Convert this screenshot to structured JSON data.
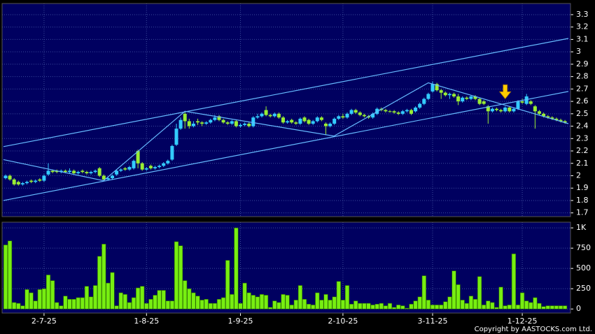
{
  "chart_data": [
    {
      "type": "candlestick",
      "up_color": "#33ccff",
      "down_color": "#99ee33",
      "grid": true,
      "grid_color": "#3a4a9a",
      "ylim": [
        1.67,
        3.39
      ],
      "yticks": [
        1.7,
        1.8,
        1.9,
        2,
        2.1,
        2.2,
        2.3,
        2.4,
        2.5,
        2.6,
        2.7,
        2.8,
        2.9,
        3,
        3.1,
        3.2,
        3.3
      ],
      "open": [
        1.98,
        2.0,
        1.97,
        1.95,
        1.93,
        1.94,
        1.96,
        1.95,
        1.97,
        1.96,
        2.01,
        2.04,
        2.04,
        2.03,
        2.04,
        2.03,
        2.04,
        2.02,
        2.04,
        2.03,
        2.02,
        2.03,
        2.06,
        2.0,
        1.97,
        1.98,
        2.01,
        2.04,
        2.06,
        2.05,
        2.06,
        2.2,
        2.1,
        2.05,
        2.08,
        2.06,
        2.07,
        2.08,
        2.1,
        2.13,
        2.25,
        2.38,
        2.5,
        2.44,
        2.4,
        2.44,
        2.43,
        2.42,
        2.43,
        2.45,
        2.48,
        2.45,
        2.43,
        2.42,
        2.44,
        2.4,
        2.41,
        2.42,
        2.4,
        2.47,
        2.48,
        2.53,
        2.49,
        2.48,
        2.5,
        2.47,
        2.43,
        2.45,
        2.43,
        2.42,
        2.47,
        2.45,
        2.42,
        2.44,
        2.47,
        2.42,
        2.4,
        2.42,
        2.46,
        2.48,
        2.47,
        2.5,
        2.53,
        2.51,
        2.49,
        2.48,
        2.47,
        2.5,
        2.54,
        2.53,
        2.52,
        2.52,
        2.51,
        2.5,
        2.52,
        2.53,
        2.52,
        2.55,
        2.58,
        2.62,
        2.68,
        2.74,
        2.69,
        2.67,
        2.65,
        2.66,
        2.64,
        2.6,
        2.63,
        2.62,
        2.64,
        2.62,
        2.6,
        2.56,
        2.52,
        2.54,
        2.53,
        2.52,
        2.55,
        2.52,
        2.54,
        2.6,
        2.58,
        2.6,
        2.56,
        2.52,
        2.5,
        2.48,
        2.47,
        2.46,
        2.45,
        2.44
      ],
      "high": [
        2.01,
        2.01,
        1.98,
        1.96,
        1.95,
        1.96,
        1.97,
        1.97,
        1.98,
        2.01,
        2.1,
        2.05,
        2.05,
        2.05,
        2.05,
        2.06,
        2.05,
        2.04,
        2.05,
        2.04,
        2.04,
        2.05,
        2.07,
        2.01,
        1.99,
        2.01,
        2.05,
        2.06,
        2.07,
        2.08,
        2.13,
        2.21,
        2.11,
        2.07,
        2.09,
        2.08,
        2.09,
        2.11,
        2.13,
        2.25,
        2.42,
        2.47,
        2.52,
        2.46,
        2.44,
        2.46,
        2.44,
        2.44,
        2.46,
        2.49,
        2.49,
        2.46,
        2.44,
        2.45,
        2.45,
        2.42,
        2.43,
        2.43,
        2.48,
        2.5,
        2.51,
        2.56,
        2.5,
        2.51,
        2.51,
        2.48,
        2.45,
        2.46,
        2.44,
        2.47,
        2.48,
        2.46,
        2.45,
        2.48,
        2.48,
        2.43,
        2.43,
        2.47,
        2.49,
        2.5,
        2.51,
        2.54,
        2.54,
        2.52,
        2.5,
        2.49,
        2.51,
        2.55,
        2.55,
        2.54,
        2.53,
        2.53,
        2.52,
        2.53,
        2.54,
        2.54,
        2.56,
        2.59,
        2.63,
        2.67,
        2.76,
        2.75,
        2.7,
        2.68,
        2.67,
        2.67,
        2.66,
        2.64,
        2.64,
        2.65,
        2.65,
        2.63,
        2.61,
        2.57,
        2.55,
        2.55,
        2.54,
        2.56,
        2.56,
        2.55,
        2.61,
        2.62,
        2.66,
        2.61,
        2.57,
        2.53,
        2.51,
        2.49,
        2.48,
        2.47,
        2.46,
        2.45
      ],
      "low": [
        1.97,
        1.96,
        1.92,
        1.92,
        1.92,
        1.93,
        1.94,
        1.94,
        1.95,
        1.95,
        2.0,
        2.02,
        2.02,
        2.02,
        2.02,
        2.02,
        2.01,
        2.01,
        2.02,
        2.01,
        2.01,
        2.02,
        1.99,
        1.96,
        1.96,
        1.97,
        2.0,
        2.03,
        2.04,
        2.04,
        2.05,
        2.06,
        2.04,
        2.04,
        2.05,
        2.05,
        2.06,
        2.07,
        2.09,
        2.12,
        2.24,
        2.37,
        2.38,
        2.38,
        2.39,
        2.41,
        2.4,
        2.41,
        2.42,
        2.44,
        2.44,
        2.42,
        2.41,
        2.41,
        2.39,
        2.39,
        2.4,
        2.39,
        2.39,
        2.46,
        2.47,
        2.48,
        2.47,
        2.47,
        2.46,
        2.42,
        2.42,
        2.42,
        2.41,
        2.41,
        2.43,
        2.41,
        2.41,
        2.43,
        2.44,
        2.33,
        2.39,
        2.41,
        2.45,
        2.46,
        2.46,
        2.49,
        2.5,
        2.48,
        2.47,
        2.46,
        2.46,
        2.49,
        2.52,
        2.51,
        2.51,
        2.5,
        2.49,
        2.49,
        2.51,
        2.49,
        2.51,
        2.54,
        2.57,
        2.61,
        2.67,
        2.68,
        2.62,
        2.64,
        2.62,
        2.63,
        2.57,
        2.59,
        2.61,
        2.61,
        2.61,
        2.57,
        2.57,
        2.42,
        2.51,
        2.52,
        2.51,
        2.51,
        2.51,
        2.51,
        2.53,
        2.58,
        2.57,
        2.57,
        2.38,
        2.49,
        2.47,
        2.46,
        2.45,
        2.44,
        2.43,
        2.42
      ],
      "close": [
        2.0,
        1.97,
        1.93,
        1.93,
        1.94,
        1.95,
        1.95,
        1.96,
        1.96,
        2.0,
        2.04,
        2.03,
        2.03,
        2.04,
        2.03,
        2.04,
        2.02,
        2.03,
        2.03,
        2.02,
        2.03,
        2.04,
        2.0,
        1.97,
        1.98,
        2.0,
        2.04,
        2.05,
        2.05,
        2.07,
        2.12,
        2.1,
        2.05,
        2.06,
        2.06,
        2.07,
        2.08,
        2.1,
        2.12,
        2.24,
        2.38,
        2.45,
        2.44,
        2.4,
        2.42,
        2.43,
        2.42,
        2.43,
        2.45,
        2.47,
        2.45,
        2.43,
        2.42,
        2.44,
        2.4,
        2.41,
        2.42,
        2.4,
        2.47,
        2.48,
        2.5,
        2.49,
        2.48,
        2.5,
        2.47,
        2.43,
        2.44,
        2.43,
        2.42,
        2.46,
        2.44,
        2.42,
        2.44,
        2.47,
        2.45,
        2.4,
        2.42,
        2.46,
        2.48,
        2.47,
        2.5,
        2.53,
        2.51,
        2.49,
        2.48,
        2.47,
        2.5,
        2.54,
        2.53,
        2.52,
        2.52,
        2.51,
        2.5,
        2.52,
        2.53,
        2.5,
        2.55,
        2.58,
        2.62,
        2.66,
        2.74,
        2.69,
        2.67,
        2.65,
        2.66,
        2.64,
        2.6,
        2.63,
        2.62,
        2.64,
        2.62,
        2.58,
        2.58,
        2.52,
        2.54,
        2.53,
        2.52,
        2.55,
        2.52,
        2.54,
        2.6,
        2.59,
        2.64,
        2.58,
        2.52,
        2.5,
        2.48,
        2.47,
        2.46,
        2.45,
        2.44,
        2.43
      ],
      "lines": [
        {
          "color": "#66bbff",
          "x": [
            -0.5,
            131.8
          ],
          "y": [
            2.235,
            3.108
          ]
        },
        {
          "color": "#66bbff",
          "x": [
            -0.5,
            131.8
          ],
          "y": [
            1.8,
            2.68
          ]
        },
        {
          "color": "#66bbff",
          "x": [
            -0.5,
            22.95,
            42,
            76.9,
            99,
            131.8
          ],
          "y": [
            2.13,
            1.96,
            2.52,
            2.32,
            2.75,
            2.42
          ]
        }
      ],
      "arrow": {
        "color": "#ffcc00",
        "x": 117,
        "y": 2.61
      }
    },
    {
      "type": "bar",
      "color": "#77ee11",
      "grid": true,
      "grid_color": "#3a4a9a",
      "ylim": [
        -50,
        1070
      ],
      "yticks": [
        0,
        250,
        500,
        750,
        {
          "value": 1000,
          "label": "1K"
        }
      ],
      "categories": [
        null,
        null,
        null,
        null,
        null,
        null,
        null,
        null,
        null,
        "2-7-25",
        null,
        null,
        null,
        null,
        null,
        null,
        null,
        null,
        null,
        null,
        null,
        null,
        null,
        null,
        null,
        null,
        null,
        null,
        null,
        null,
        null,
        null,
        null,
        "1-8-25",
        null,
        null,
        null,
        null,
        null,
        null,
        null,
        null,
        null,
        null,
        null,
        null,
        null,
        null,
        null,
        null,
        null,
        null,
        null,
        null,
        null,
        "1-9-25",
        null,
        null,
        null,
        null,
        null,
        null,
        null,
        null,
        null,
        null,
        null,
        null,
        null,
        null,
        null,
        null,
        null,
        null,
        null,
        null,
        null,
        null,
        null,
        "2-10-25",
        null,
        null,
        null,
        null,
        null,
        null,
        null,
        null,
        null,
        null,
        null,
        null,
        null,
        null,
        null,
        null,
        null,
        null,
        null,
        null,
        "3-11-25",
        null,
        null,
        null,
        null,
        null,
        null,
        null,
        null,
        null,
        null,
        null,
        null,
        null,
        null,
        null,
        null,
        null,
        null,
        null,
        null,
        "1-12-25",
        null,
        null,
        null,
        null,
        null,
        null,
        null,
        null,
        null,
        null
      ],
      "values": [
        790,
        840,
        80,
        70,
        40,
        240,
        200,
        100,
        240,
        250,
        420,
        350,
        80,
        40,
        160,
        120,
        120,
        140,
        140,
        280,
        150,
        290,
        650,
        800,
        320,
        450,
        40,
        200,
        180,
        80,
        140,
        260,
        280,
        70,
        120,
        170,
        230,
        230,
        100,
        100,
        830,
        780,
        350,
        250,
        200,
        160,
        110,
        120,
        70,
        70,
        120,
        140,
        600,
        180,
        1000,
        70,
        320,
        200,
        170,
        150,
        180,
        170,
        20,
        100,
        80,
        180,
        170,
        50,
        110,
        290,
        120,
        60,
        50,
        200,
        110,
        180,
        110,
        150,
        340,
        110,
        290,
        60,
        100,
        70,
        70,
        70,
        50,
        60,
        70,
        40,
        70,
        20,
        50,
        40,
        10,
        60,
        100,
        150,
        410,
        110,
        50,
        50,
        50,
        90,
        150,
        470,
        300,
        110,
        70,
        160,
        120,
        400,
        50,
        100,
        80,
        20,
        270,
        40,
        50,
        680,
        50,
        200,
        100,
        80,
        140,
        70,
        30,
        40,
        40,
        40,
        40,
        40
      ],
      "annotation": "Copyright by AASTOCKS.com Ltd."
    }
  ]
}
